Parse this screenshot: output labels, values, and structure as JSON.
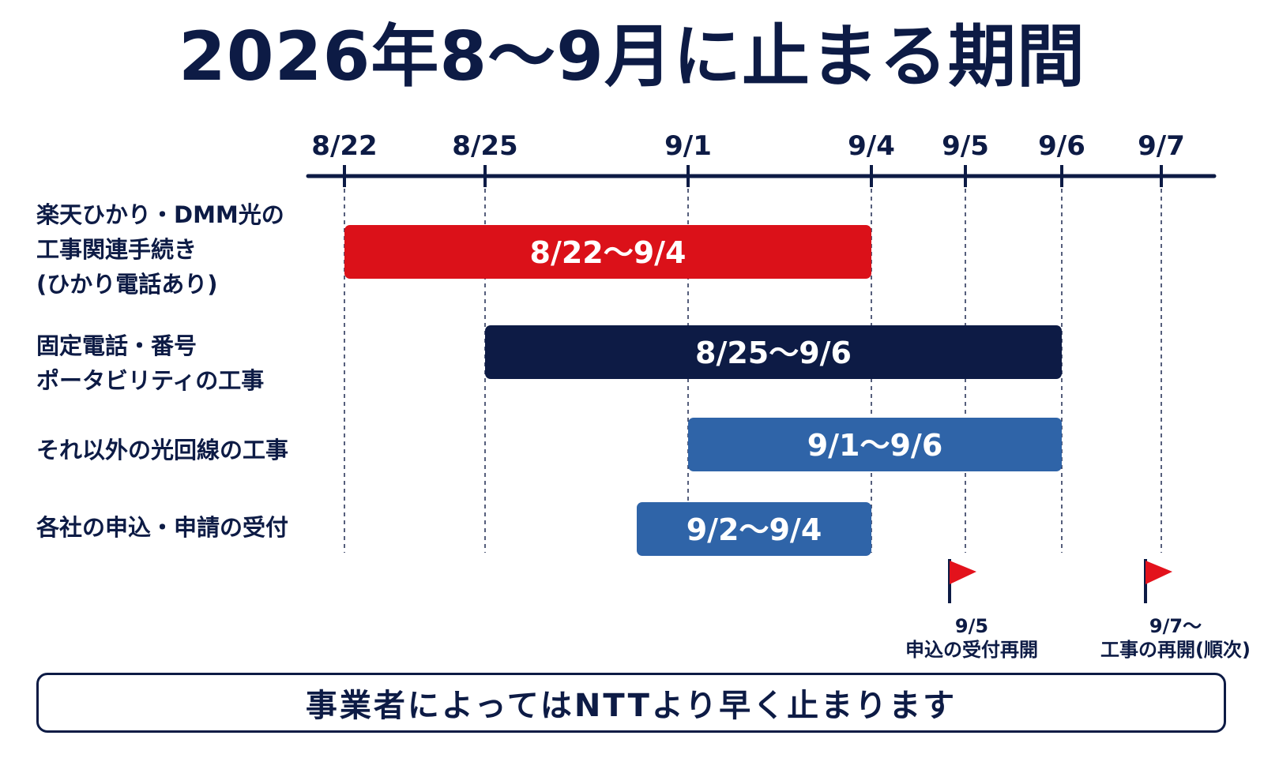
{
  "title": "2026年8〜9月に止まる期間",
  "colors": {
    "navy": "#0d1b45",
    "red": "#db1119",
    "blue": "#2f64a8",
    "flag": "#e3121c"
  },
  "chart_data": {
    "type": "gantt",
    "x_ticks": [
      "8/22",
      "8/25",
      "9/1",
      "9/4",
      "9/5",
      "9/6",
      "9/7"
    ],
    "rows": [
      {
        "label_lines": [
          "楽天ひかり・DMM光の",
          "工事関連手続き",
          "(ひかり電話あり)"
        ],
        "start": "8/22",
        "end": "9/4",
        "bar_label": "8/22〜9/4",
        "color": "#db1119"
      },
      {
        "label_lines": [
          "固定電話・番号",
          "ポータビリティの工事"
        ],
        "start": "8/25",
        "end": "9/6",
        "bar_label": "8/25〜9/6",
        "color": "#0d1b45"
      },
      {
        "label_lines": [
          "それ以外の光回線の工事"
        ],
        "start": "9/1",
        "end": "9/6",
        "bar_label": "9/1〜9/6",
        "color": "#2f64a8"
      },
      {
        "label_lines": [
          "各社の申込・申請の受付"
        ],
        "start": "9/2",
        "end": "9/4",
        "bar_label": "9/2〜9/4",
        "color": "#2f64a8"
      }
    ],
    "milestones": [
      {
        "date": "9/5",
        "caption_lines": [
          "9/5",
          "申込の受付再開"
        ],
        "icon": "red-flag-icon"
      },
      {
        "date": "9/7",
        "caption_lines": [
          "9/7〜",
          "工事の再開(順次)"
        ],
        "icon": "red-flag-icon"
      }
    ]
  },
  "notice": "事業者によってはNTTより早く止まります"
}
